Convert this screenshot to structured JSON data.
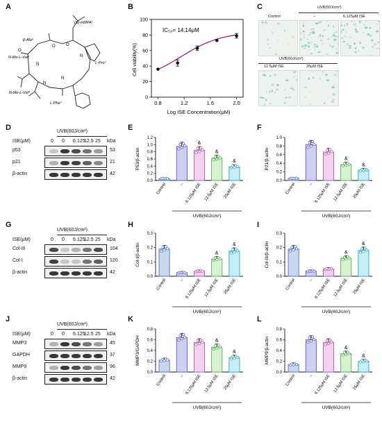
{
  "panels": {
    "A": {
      "letter": "A",
      "labels": {
        "beta_ala": "β-Ala⁶",
        "hmpa": "(S)-HMPA¹",
        "n_me_val5": "N-Me-L-Val⁵",
        "l_pro": "L-Pro²",
        "n_me_val4": "N-Me-L-Val⁴",
        "l_phe": "L-Phe³",
        "n": "N",
        "o": "O"
      }
    },
    "B": {
      "letter": "B",
      "ic50": "IC₅₀= 14.14μM",
      "ylabel": "Cell viability(%)",
      "xlabel": "Log ISE Concentration(μM)",
      "yticks": [
        "0",
        "20",
        "40",
        "60",
        "80",
        "100"
      ],
      "xticks": [
        "0.8",
        "1.2",
        "1.6",
        "2.0"
      ]
    },
    "C": {
      "letter": "C",
      "uvb": "UVB(60J/cm²)",
      "control": "Control",
      "dash": "–",
      "c6": "6.125μM ISE",
      "uvb2": "UVB(60J/cm²)",
      "c12": "12.5μM ISE",
      "c25": "25μM ISE"
    },
    "D": {
      "letter": "D",
      "uvb": "UVB(60J/cm²)",
      "ise": "ISE(μM)",
      "lanes": [
        "0",
        "0",
        "6.125",
        "12.5",
        "25"
      ],
      "kda": "kDa",
      "rows": [
        {
          "name": "p53",
          "kd": "53"
        },
        {
          "name": "p21",
          "kd": "21"
        },
        {
          "name": "β-actin",
          "kd": "42"
        }
      ]
    },
    "G": {
      "letter": "G",
      "uvb": "UVB(60J/cm²)",
      "ise": "ISE(μM)",
      "lanes": [
        "0",
        "0",
        "6.125",
        "12.5",
        "25"
      ],
      "kda": "kDa",
      "rows": [
        {
          "name": "Col-III",
          "kd": "104"
        },
        {
          "name": "Col-I",
          "kd": "120"
        },
        {
          "name": "β-actin",
          "kd": "42"
        }
      ]
    },
    "J": {
      "letter": "J",
      "uvb": "UVB(60J/cm²)",
      "ise": "ISE(μM)",
      "lanes": [
        "0",
        "0",
        "6.125",
        "12.5",
        "25"
      ],
      "kda": "kDa",
      "rows": [
        {
          "name": "MMP3",
          "kd": "45"
        },
        {
          "name": "GAPDH",
          "kd": "37"
        },
        {
          "name": "MMP9",
          "kd": "96"
        },
        {
          "name": "β-actin",
          "kd": "42"
        }
      ]
    },
    "E": {
      "letter": "E",
      "ylabel": "P53/β-actin"
    },
    "F": {
      "letter": "F",
      "ylabel": "P21/β-actin"
    },
    "H": {
      "letter": "H",
      "ylabel": "Col-I/β-actin"
    },
    "I": {
      "letter": "I",
      "ylabel": "Col-III/β-actin"
    },
    "K": {
      "letter": "K",
      "ylabel": "MMP3/GAPDH"
    },
    "L": {
      "letter": "L",
      "ylabel": "MMP9/β-actin"
    },
    "bar_common": {
      "categories": [
        "Control",
        "–",
        "6.125μM ISE",
        "12.5μM ISE",
        "25μM ISE"
      ],
      "uvb": "UVB(60J/cm²)",
      "sig": "&",
      "colors": {
        "fill": [
          "#c9d7ee",
          "#cfd0f0",
          "#f3d1ee",
          "#d8f2d0",
          "#c8eef5"
        ],
        "stroke": [
          "#4a74c8",
          "#5a56c8",
          "#b455b4",
          "#4fae4f",
          "#2aa7c0"
        ]
      }
    }
  },
  "chart_data": [
    {
      "panel": "B",
      "type": "scatter",
      "title": "",
      "xlabel": "Log ISE Concentration(μM)",
      "ylabel": "Cell viability(%)",
      "xlim": [
        0.7,
        2.1
      ],
      "ylim": [
        0,
        100
      ],
      "x": [
        0.8,
        1.1,
        1.4,
        1.7,
        2.0
      ],
      "y": [
        36,
        44,
        63,
        73,
        79
      ],
      "err": [
        0,
        4,
        3,
        0,
        3
      ],
      "fit": "sigmoid",
      "annotation": "IC₅₀= 14.14μM"
    },
    {
      "panel": "E",
      "type": "bar",
      "categories": [
        "Control",
        "–",
        "6.125μM ISE",
        "12.5μM ISE",
        "25μM ISE"
      ],
      "values": [
        0.05,
        0.95,
        0.84,
        0.62,
        0.38
      ],
      "ylim": [
        0,
        1.2
      ],
      "yticks": [
        "0.0",
        "0.2",
        "0.4",
        "0.6",
        "0.8",
        "1.0",
        "1.2"
      ],
      "sig": [
        false,
        false,
        true,
        true,
        true
      ]
    },
    {
      "panel": "F",
      "type": "bar",
      "categories": [
        "Control",
        "–",
        "6.125μM ISE",
        "12.5μM ISE",
        "25μM ISE"
      ],
      "values": [
        0.05,
        0.83,
        0.66,
        0.37,
        0.24
      ],
      "ylim": [
        0,
        1.0
      ],
      "yticks": [
        "0.0",
        "0.2",
        "0.4",
        "0.6",
        "0.8",
        "1.0"
      ],
      "sig": [
        false,
        false,
        false,
        true,
        true
      ]
    },
    {
      "panel": "H",
      "type": "bar",
      "categories": [
        "Control",
        "–",
        "6.125μM ISE",
        "12.5μM ISE",
        "25μM ISE"
      ],
      "values": [
        0.19,
        0.025,
        0.035,
        0.12,
        0.175
      ],
      "ylim": [
        0,
        0.3
      ],
      "yticks": [
        "0.0",
        "0.1",
        "0.2",
        "0.3"
      ],
      "sig": [
        false,
        false,
        false,
        true,
        true
      ]
    },
    {
      "panel": "I",
      "type": "bar",
      "categories": [
        "Control",
        "–",
        "6.125μM ISE",
        "12.5μM ISE",
        "25μM ISE"
      ],
      "values": [
        0.19,
        0.035,
        0.05,
        0.125,
        0.18
      ],
      "ylim": [
        0,
        0.3
      ],
      "yticks": [
        "0.0",
        "0.1",
        "0.2",
        "0.3"
      ],
      "sig": [
        false,
        false,
        false,
        true,
        true
      ]
    },
    {
      "panel": "K",
      "type": "bar",
      "categories": [
        "Control",
        "–",
        "6.125μM ISE",
        "12.5μM ISE",
        "25μM ISE"
      ],
      "values": [
        0.22,
        0.64,
        0.55,
        0.46,
        0.27
      ],
      "ylim": [
        0,
        0.8
      ],
      "yticks": [
        "0.0",
        "0.2",
        "0.4",
        "0.6",
        "0.8"
      ],
      "sig": [
        false,
        false,
        false,
        true,
        true
      ]
    },
    {
      "panel": "L",
      "type": "bar",
      "categories": [
        "Control",
        "–",
        "6.125μM ISE",
        "12.5μM ISE",
        "25μM ISE"
      ],
      "values": [
        0.14,
        0.6,
        0.55,
        0.34,
        0.2
      ],
      "ylim": [
        0,
        0.8
      ],
      "yticks": [
        "0.0",
        "0.2",
        "0.4",
        "0.6",
        "0.8"
      ],
      "sig": [
        false,
        false,
        false,
        true,
        true
      ]
    }
  ]
}
